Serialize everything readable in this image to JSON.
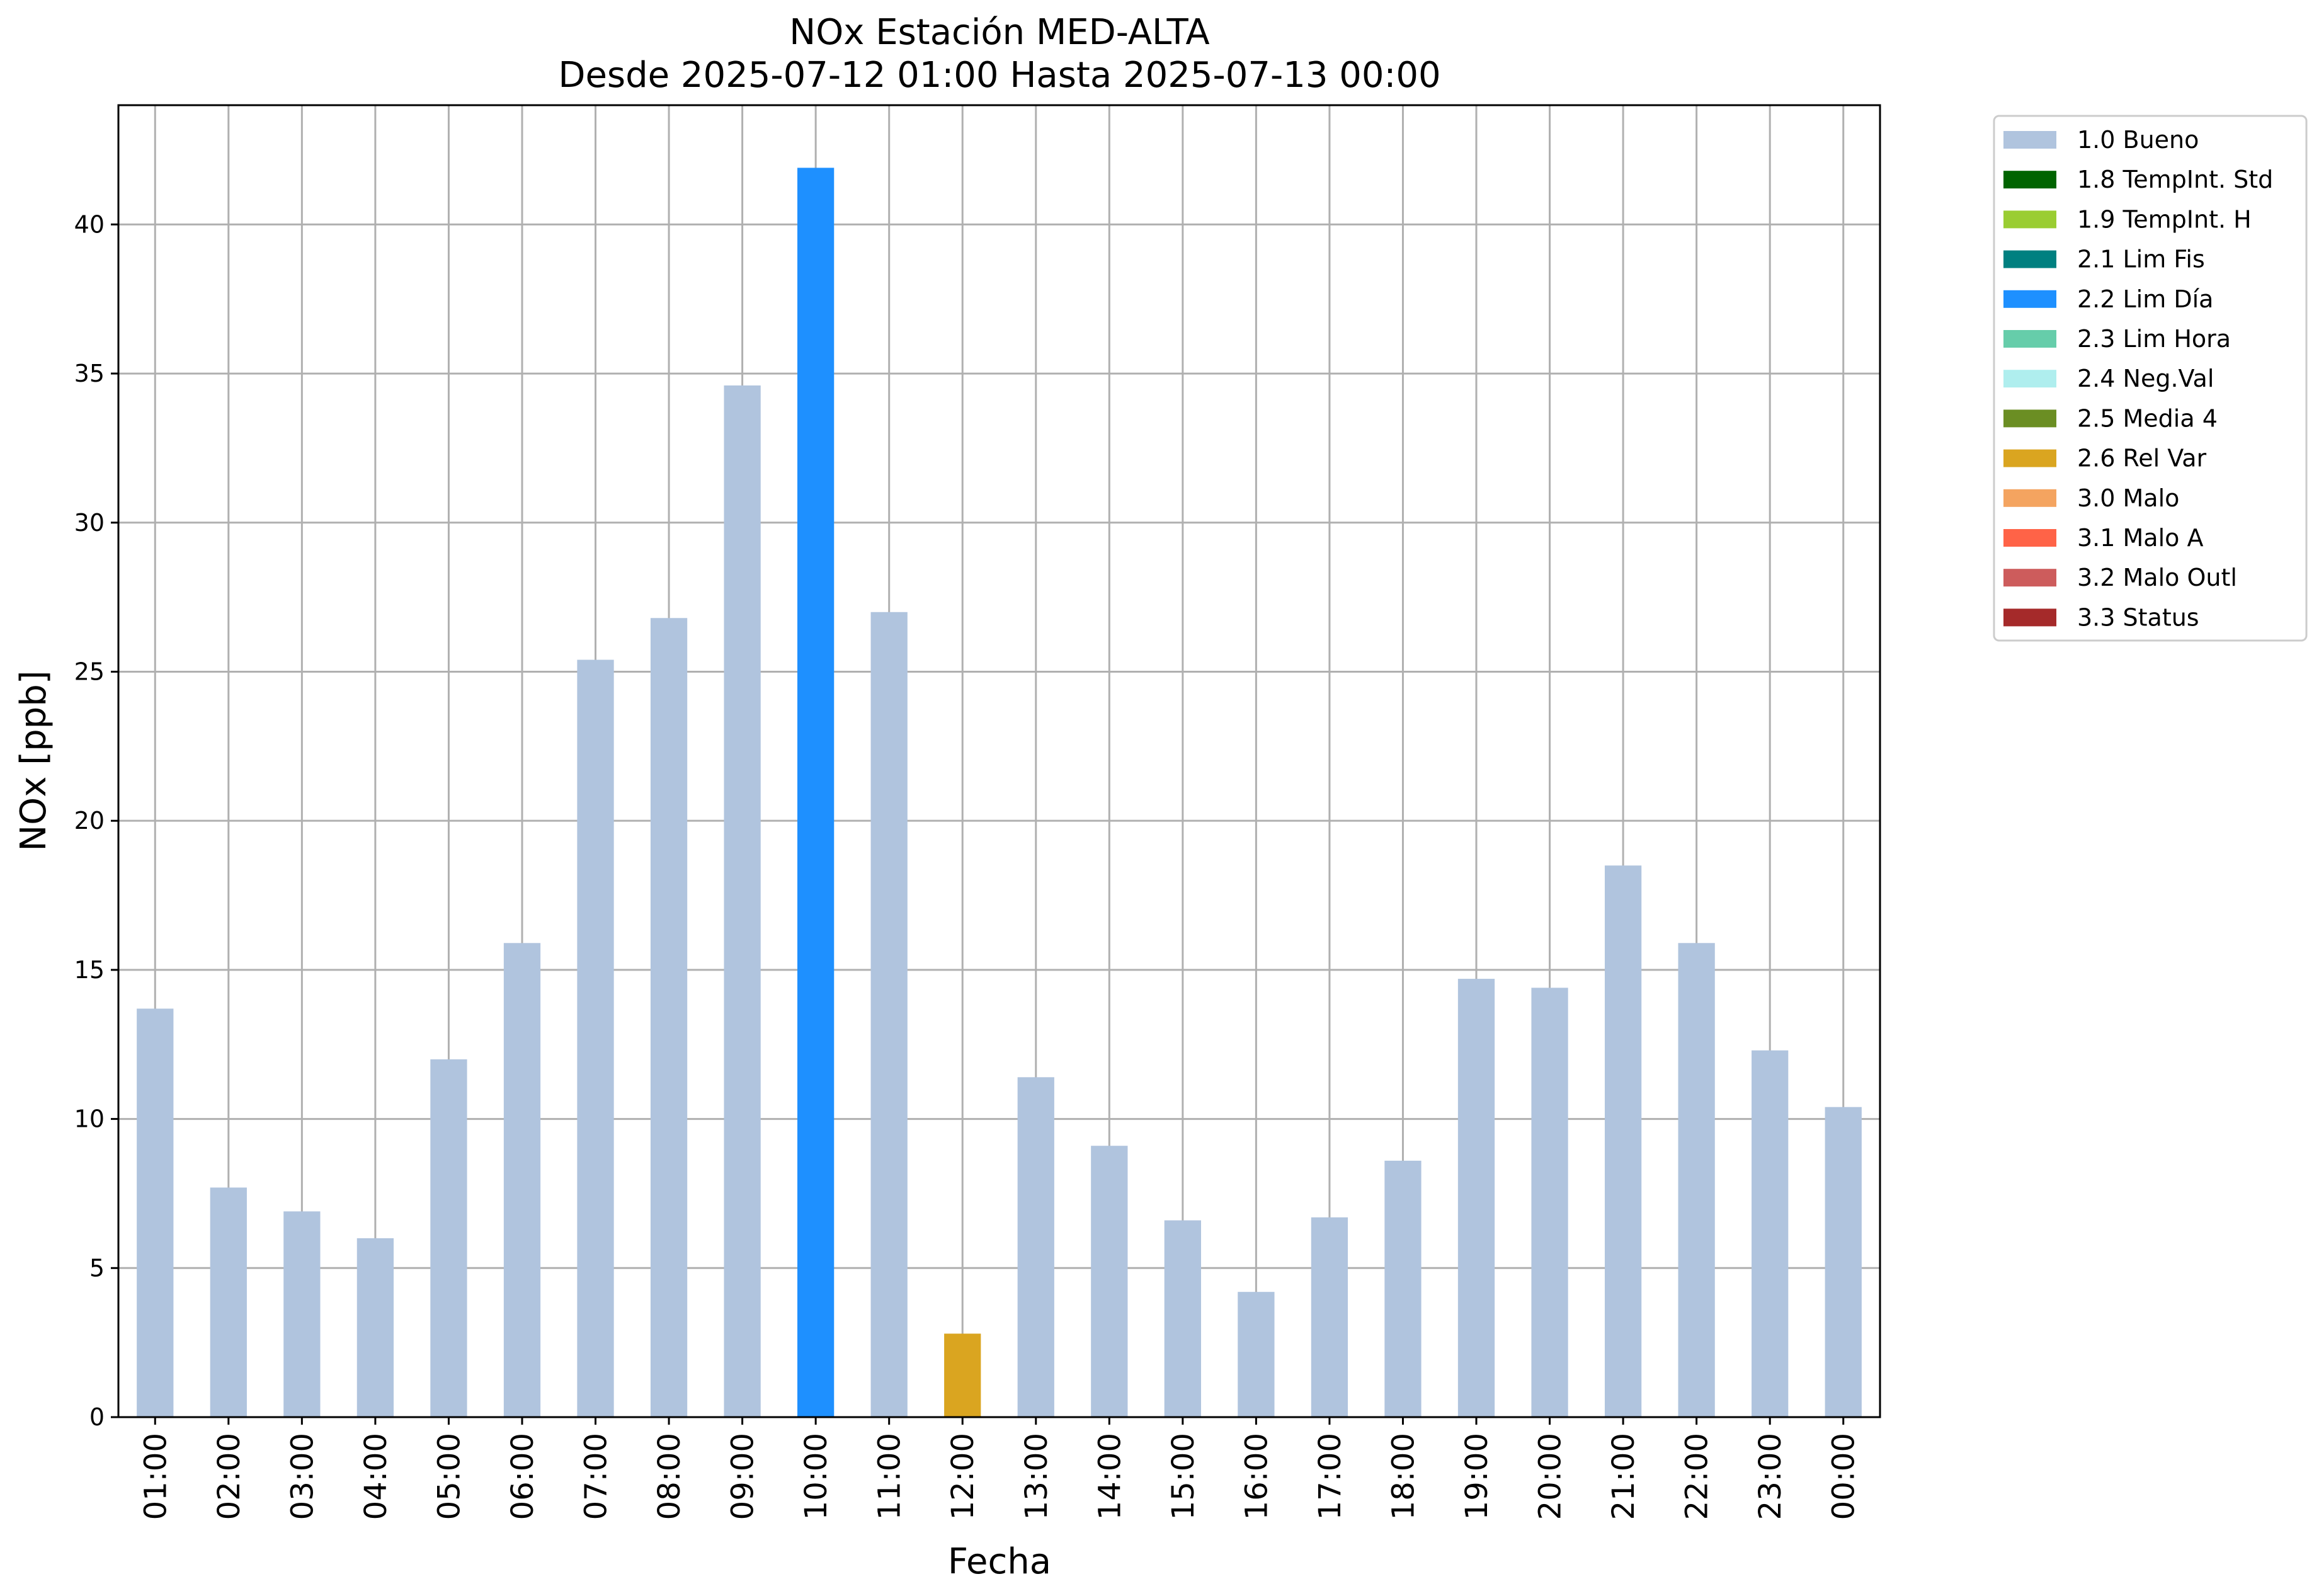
{
  "chart_data": {
    "type": "bar",
    "title": "NOx Estación MED-ALTA",
    "subtitle": "Desde 2025-07-12 01:00 Hasta 2025-07-13 00:00",
    "xlabel": "Fecha",
    "ylabel": "NOx [ppb]",
    "ylim": [
      0,
      44
    ],
    "yticks": [
      0,
      5,
      10,
      15,
      20,
      25,
      30,
      35,
      40
    ],
    "grid": true,
    "legend_position": "outside-top-right",
    "categories": [
      "01:00",
      "02:00",
      "03:00",
      "04:00",
      "05:00",
      "06:00",
      "07:00",
      "08:00",
      "09:00",
      "10:00",
      "11:00",
      "12:00",
      "13:00",
      "14:00",
      "15:00",
      "16:00",
      "17:00",
      "18:00",
      "19:00",
      "20:00",
      "21:00",
      "22:00",
      "23:00",
      "00:00"
    ],
    "values": [
      13.7,
      7.7,
      6.9,
      6.0,
      12.0,
      15.9,
      25.4,
      26.8,
      34.6,
      41.9,
      27.0,
      2.8,
      11.4,
      9.1,
      6.6,
      4.2,
      6.7,
      8.6,
      14.7,
      14.4,
      18.5,
      15.9,
      12.3,
      10.4
    ],
    "flags": [
      "1.0",
      "1.0",
      "1.0",
      "1.0",
      "1.0",
      "1.0",
      "1.0",
      "1.0",
      "1.0",
      "2.2",
      "1.0",
      "2.6",
      "1.0",
      "1.0",
      "1.0",
      "1.0",
      "1.0",
      "1.0",
      "1.0",
      "1.0",
      "1.0",
      "1.0",
      "1.0",
      "1.0"
    ],
    "legend": [
      {
        "code": "1.0",
        "label": "1.0 Bueno",
        "color": "#b0c4de"
      },
      {
        "code": "1.8",
        "label": "1.8 TempInt. Std",
        "color": "#006400"
      },
      {
        "code": "1.9",
        "label": "1.9 TempInt. H",
        "color": "#9acd32"
      },
      {
        "code": "2.1",
        "label": "2.1 Lim Fis",
        "color": "#008080"
      },
      {
        "code": "2.2",
        "label": "2.2 Lim Día",
        "color": "#1e90ff"
      },
      {
        "code": "2.3",
        "label": "2.3 Lim Hora",
        "color": "#66cdaa"
      },
      {
        "code": "2.4",
        "label": "2.4 Neg.Val",
        "color": "#afeeee"
      },
      {
        "code": "2.5",
        "label": "2.5 Media 4",
        "color": "#6b8e23"
      },
      {
        "code": "2.6",
        "label": "2.6 Rel Var",
        "color": "#daa520"
      },
      {
        "code": "3.0",
        "label": "3.0 Malo",
        "color": "#f4a460"
      },
      {
        "code": "3.1",
        "label": "3.1 Malo A",
        "color": "#ff6347"
      },
      {
        "code": "3.2",
        "label": "3.2 Malo Outl",
        "color": "#cd5c5c"
      },
      {
        "code": "3.3",
        "label": "3.3 Status",
        "color": "#a52a2a"
      }
    ]
  }
}
